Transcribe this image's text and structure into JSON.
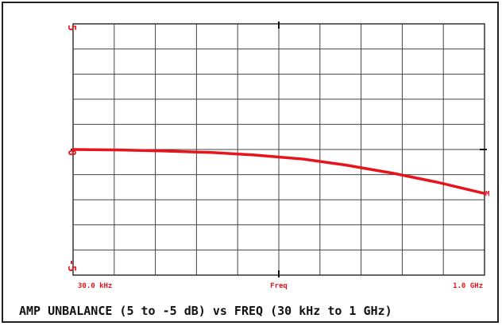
{
  "chart_data": {
    "type": "line",
    "caption": "AMP UNBALANCE (5 to -5 dB) vs FREQ (30 kHz to 1 GHz)",
    "x_scale": "log",
    "x_range_hz": [
      30000,
      1000000000
    ],
    "ylim": [
      -5,
      5
    ],
    "y_tick_labels": [
      "5",
      "0",
      "-5"
    ],
    "x_tick_labels": [
      "30.0 kHz",
      "Freq",
      "1.0 GHz"
    ],
    "end_marker": "M",
    "grid": true,
    "x_divisions": 10,
    "y_divisions": 10,
    "series": [
      {
        "color": "#e8141c",
        "x": [
          30000,
          100000,
          300000,
          1000000,
          3000000,
          10000000,
          30000000,
          100000000,
          300000000,
          1000000000
        ],
        "values": [
          0,
          -0.02,
          -0.06,
          -0.12,
          -0.22,
          -0.38,
          -0.62,
          -0.95,
          -1.3,
          -1.75
        ]
      }
    ]
  }
}
